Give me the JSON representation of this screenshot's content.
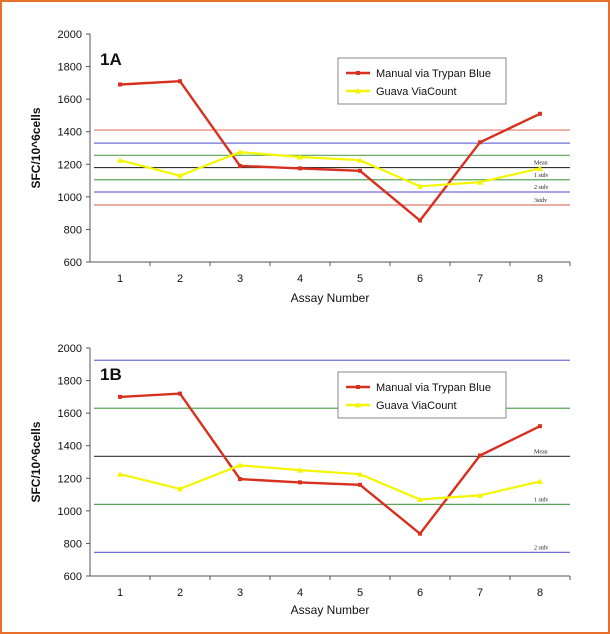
{
  "chart_data": [
    {
      "type": "line",
      "panel_label": "1A",
      "xlabel": "Assay Number",
      "ylabel": "SFC/10^6cells",
      "x": [
        1,
        2,
        3,
        4,
        5,
        6,
        7,
        8
      ],
      "ylim": [
        600,
        2000
      ],
      "yticks": [
        600,
        800,
        1000,
        1200,
        1400,
        1600,
        1800,
        2000
      ],
      "legend_position": "top-right",
      "series": [
        {
          "name": "Manual via Trypan Blue",
          "color": "#d7301f",
          "values": [
            1690,
            1710,
            1190,
            1175,
            1160,
            855,
            1335,
            1510
          ]
        },
        {
          "name": "Guava ViaCount",
          "color": "#f5f500",
          "values": [
            1225,
            1130,
            1275,
            1245,
            1225,
            1065,
            1090,
            1175
          ]
        }
      ],
      "reference_lines": [
        {
          "value": 1410,
          "color": "#e07a6a",
          "label": ""
        },
        {
          "value": 1330,
          "color": "#6f6fd8",
          "label": ""
        },
        {
          "value": 1255,
          "color": "#5aa55a",
          "label": ""
        },
        {
          "value": 1180,
          "color": "#333333",
          "label": "Mean"
        },
        {
          "value": 1105,
          "color": "#5aa55a",
          "label": "1 stdv"
        },
        {
          "value": 1030,
          "color": "#6f6fd8",
          "label": "2 stdv"
        },
        {
          "value": 950,
          "color": "#e07a6a",
          "label": "3stdv"
        }
      ]
    },
    {
      "type": "line",
      "panel_label": "1B",
      "xlabel": "Assay Number",
      "ylabel": "SFC/10^6cells",
      "x": [
        1,
        2,
        3,
        4,
        5,
        6,
        7,
        8
      ],
      "ylim": [
        600,
        2000
      ],
      "yticks": [
        600,
        800,
        1000,
        1200,
        1400,
        1600,
        1800,
        2000
      ],
      "legend_position": "top-right",
      "series": [
        {
          "name": "Manual via Trypan Blue",
          "color": "#d7301f",
          "values": [
            1700,
            1720,
            1195,
            1175,
            1160,
            860,
            1340,
            1520
          ]
        },
        {
          "name": "Guava ViaCount",
          "color": "#f5f500",
          "values": [
            1225,
            1135,
            1280,
            1250,
            1225,
            1070,
            1095,
            1180
          ]
        }
      ],
      "reference_lines": [
        {
          "value": 1925,
          "color": "#6f6fd8",
          "label": ""
        },
        {
          "value": 1630,
          "color": "#5aa55a",
          "label": ""
        },
        {
          "value": 1335,
          "color": "#333333",
          "label": "Mean"
        },
        {
          "value": 1040,
          "color": "#5aa55a",
          "label": "1 stdv"
        },
        {
          "value": 745,
          "color": "#6f6fd8",
          "label": "2 stdv"
        }
      ]
    }
  ]
}
